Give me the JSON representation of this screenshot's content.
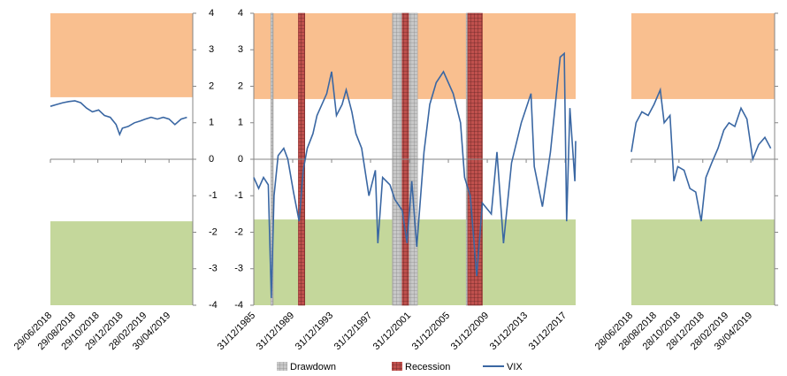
{
  "chart_data": [
    {
      "type": "line",
      "ylim": [
        -4,
        4
      ],
      "yticks": [
        -4,
        -3,
        -2,
        -1,
        0,
        1,
        2,
        3,
        4
      ],
      "y_axis_side": "right",
      "xlim": [
        "29/06/2018",
        "30/06/2019"
      ],
      "xticks": [
        "29/06/2018",
        "29/08/2018",
        "29/10/2018",
        "29/12/2018",
        "28/02/2019",
        "30/04/2019"
      ],
      "bands": [
        {
          "from": 1.7,
          "to": 4,
          "color": "#f9bf8f"
        },
        {
          "from": -4,
          "to": -1.7,
          "color": "#c4d79b"
        }
      ],
      "color": "#3a67a3",
      "x": [
        "29/06/2018",
        "15/07/2018",
        "31/07/2018",
        "15/08/2018",
        "31/08/2018",
        "15/09/2018",
        "30/09/2018",
        "15/10/2018",
        "31/10/2018",
        "15/11/2018",
        "30/11/2018",
        "15/12/2018",
        "24/12/2018",
        "31/12/2018",
        "15/01/2019",
        "31/01/2019",
        "15/02/2019",
        "28/02/2019",
        "15/03/2019",
        "31/03/2019",
        "15/04/2019",
        "30/04/2019",
        "15/05/2019",
        "31/05/2019",
        "15/06/2019"
      ],
      "values": [
        1.45,
        1.5,
        1.55,
        1.58,
        1.6,
        1.55,
        1.4,
        1.3,
        1.35,
        1.2,
        1.15,
        0.95,
        0.68,
        0.85,
        0.9,
        1.0,
        1.05,
        1.1,
        1.15,
        1.1,
        1.15,
        1.1,
        0.95,
        1.1,
        1.15
      ]
    },
    {
      "type": "line",
      "ylim": [
        -4,
        4
      ],
      "yticks": [
        -4,
        -3,
        -2,
        -1,
        0,
        1,
        2,
        3,
        4
      ],
      "y_axis_side": "left",
      "xlim": [
        "31/12/1985",
        "31/01/2019"
      ],
      "xticks": [
        "31/12/1985",
        "31/12/1989",
        "31/12/1993",
        "31/12/1997",
        "31/12/2001",
        "31/12/2005",
        "31/12/2009",
        "31/12/2013",
        "31/12/2017"
      ],
      "bands": [
        {
          "from": 1.65,
          "to": 4,
          "color": "#f9bf8f"
        },
        {
          "from": -4,
          "to": -1.65,
          "color": "#c4d79b"
        }
      ],
      "shaded": [
        {
          "name": "Drawdown",
          "color": "#a6a6a6",
          "periods": [
            [
              "01/10/1987",
              "31/12/1987"
            ],
            [
              "31/03/2000",
              "31/10/2002"
            ],
            [
              "31/10/2007",
              "31/03/2009"
            ]
          ]
        },
        {
          "name": "Recession",
          "color": "#953735",
          "periods": [
            [
              "31/07/1990",
              "31/03/1991"
            ],
            [
              "31/03/2001",
              "30/11/2001"
            ],
            [
              "31/12/2007",
              "30/06/2009"
            ]
          ]
        }
      ],
      "x": [
        "31/12/1985",
        "30/06/1986",
        "31/12/1986",
        "30/06/1987",
        "20/10/1987",
        "31/01/1988",
        "30/06/1988",
        "31/01/1989",
        "30/06/1989",
        "31/01/1990",
        "31/08/1990",
        "31/01/1991",
        "30/06/1991",
        "31/01/1992",
        "30/06/1992",
        "30/06/1993",
        "31/12/1993",
        "30/06/1994",
        "31/01/1995",
        "30/06/1995",
        "31/01/1996",
        "30/06/1996",
        "31/01/1997",
        "31/10/1997",
        "30/06/1998",
        "30/09/1998",
        "31/03/1999",
        "31/12/1999",
        "30/06/2000",
        "31/03/2001",
        "30/09/2001",
        "31/03/2002",
        "30/09/2002",
        "30/06/2003",
        "31/01/2004",
        "30/09/2004",
        "30/06/2005",
        "30/06/2006",
        "31/03/2007",
        "31/08/2007",
        "31/03/2008",
        "30/11/2008",
        "30/06/2009",
        "31/05/2010",
        "31/12/2010",
        "31/08/2011",
        "30/06/2012",
        "30/06/2013",
        "30/06/2014",
        "31/10/2014",
        "31/08/2015",
        "30/06/2016",
        "30/06/2017",
        "30/11/2017",
        "28/02/2018",
        "30/06/2018",
        "31/12/2018",
        "31/01/2019"
      ],
      "series": [
        {
          "name": "VIX",
          "color": "#3a67a3",
          "values": [
            -0.5,
            -0.8,
            -0.5,
            -0.7,
            -3.8,
            -1.0,
            0.1,
            0.3,
            0.0,
            -0.9,
            -1.7,
            -0.3,
            0.3,
            0.7,
            1.2,
            1.8,
            2.4,
            1.2,
            1.5,
            1.9,
            1.3,
            0.7,
            0.3,
            -1.0,
            -0.3,
            -2.3,
            -0.5,
            -0.7,
            -1.1,
            -1.4,
            -2.3,
            -0.6,
            -2.4,
            0.2,
            1.5,
            2.1,
            2.4,
            1.8,
            1.0,
            -0.5,
            -1.0,
            -3.2,
            -1.2,
            -1.5,
            0.2,
            -2.3,
            -0.1,
            1.0,
            1.8,
            -0.2,
            -1.3,
            0.2,
            2.8,
            2.9,
            -1.7,
            1.4,
            -0.6,
            0.5
          ]
        }
      ]
    },
    {
      "type": "line",
      "ylim": [
        -4,
        4
      ],
      "yticks": [
        -4,
        -3,
        -2,
        -1,
        0,
        1,
        2,
        3,
        4
      ],
      "y_axis_side": "right",
      "xlim": [
        "28/06/2018",
        "30/06/2019"
      ],
      "xticks": [
        "28/06/2018",
        "28/08/2018",
        "28/10/2018",
        "28/12/2018",
        "28/02/2019",
        "30/04/2019"
      ],
      "bands": [
        {
          "from": 1.65,
          "to": 4,
          "color": "#f9bf8f"
        },
        {
          "from": -4,
          "to": -1.65,
          "color": "#c4d79b"
        }
      ],
      "color": "#3a67a3",
      "x": [
        "28/06/2018",
        "10/07/2018",
        "25/07/2018",
        "10/08/2018",
        "25/08/2018",
        "10/09/2018",
        "20/09/2018",
        "05/10/2018",
        "15/10/2018",
        "25/10/2018",
        "10/11/2018",
        "25/11/2018",
        "10/12/2018",
        "24/12/2018",
        "05/01/2019",
        "20/01/2019",
        "05/02/2019",
        "20/02/2019",
        "05/03/2019",
        "20/03/2019",
        "05/04/2019",
        "20/04/2019",
        "05/05/2019",
        "20/05/2019",
        "05/06/2019",
        "20/06/2019"
      ],
      "values": [
        0.2,
        1.0,
        1.3,
        1.2,
        1.5,
        1.9,
        1.0,
        1.2,
        -0.6,
        -0.2,
        -0.3,
        -0.8,
        -0.9,
        -1.7,
        -0.5,
        -0.1,
        0.3,
        0.8,
        1.0,
        0.9,
        1.4,
        1.1,
        0.0,
        0.4,
        0.6,
        0.3
      ]
    }
  ]
}
